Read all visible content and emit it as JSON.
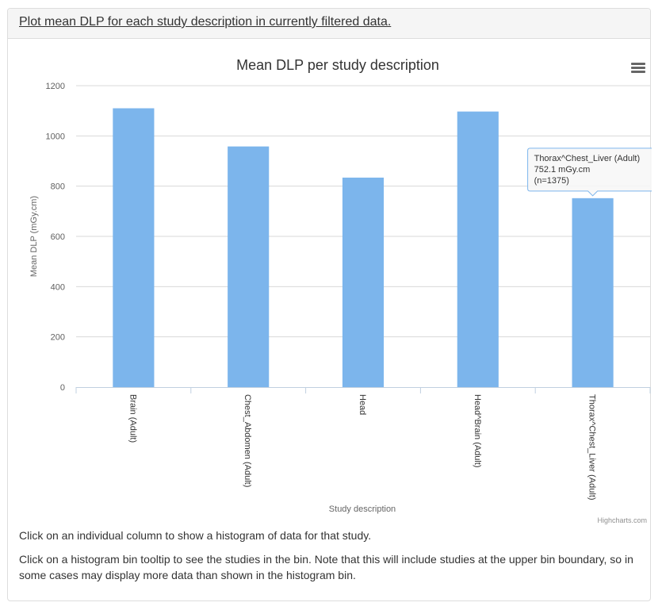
{
  "panel": {
    "heading_link": "Plot mean DLP for each study description in currently filtered data."
  },
  "chart_data": {
    "type": "bar",
    "title": "Mean DLP per study description",
    "xlabel": "Study description",
    "ylabel": "Mean DLP (mGy.cm)",
    "categories": [
      "Brain (Adult)",
      "Chest_Abdomen (Adult)",
      "Head",
      "Head^Brain (Adult)",
      "Thorax^Chest_Liver (Adult)"
    ],
    "values": [
      1110,
      958,
      834,
      1097,
      752.1
    ],
    "ylim": [
      0,
      1200
    ],
    "yticks": [
      "0",
      "200",
      "400",
      "600",
      "800",
      "1000",
      "1200"
    ],
    "grid": true,
    "bar_color": "#7cb5ec",
    "credits": "Highcharts.com",
    "tooltip": {
      "category": "Thorax^Chest_Liver (Adult)",
      "value_text": "752.1 mGy.cm",
      "count_text": "(n=1375)"
    }
  },
  "help": {
    "line1": "Click on an individual column to show a histogram of data for that study.",
    "line2": "Click on a histogram bin tooltip to see the studies in the bin. Note that this will include studies at the upper bin boundary, so in some cases may display more data than shown in the histogram bin."
  }
}
